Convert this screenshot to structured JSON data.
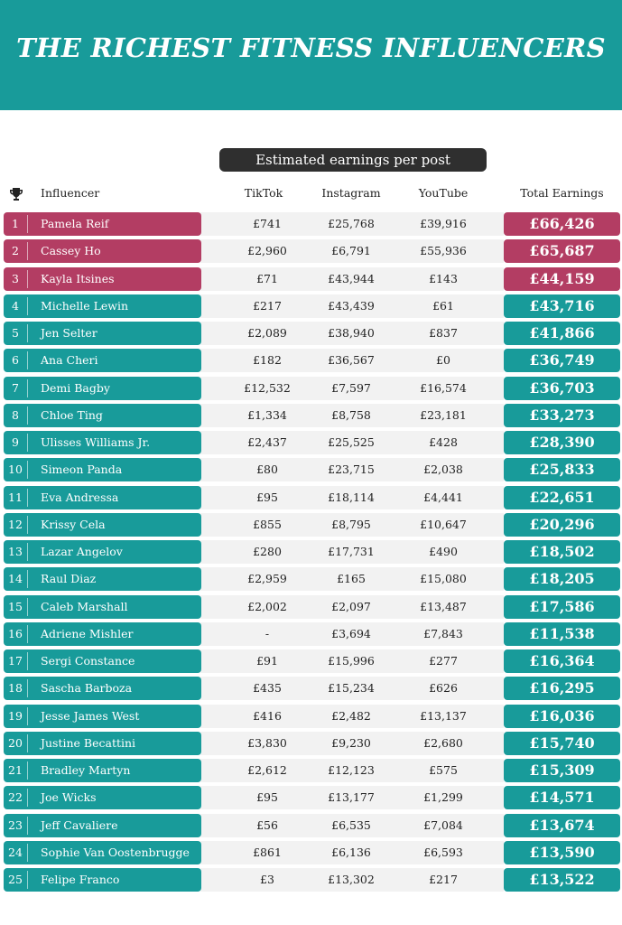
{
  "title": "THE RICHEST FITNESS INFLUENCERS",
  "subheader": "Estimated earnings per post",
  "columns": {
    "influencer": "Influencer",
    "tiktok": "TikTok",
    "instagram": "Instagram",
    "youtube": "YouTube",
    "total": "Total Earnings"
  },
  "colors": {
    "teal": "#189b9a",
    "highlight": "#b33d63",
    "dark_pill": "#2f2f2f"
  },
  "rows": [
    {
      "rank": "1",
      "name": "Pamela Reif",
      "tiktok": "£741",
      "instagram": "£25,768",
      "youtube": "£39,916",
      "total": "£66,426",
      "highlight": true
    },
    {
      "rank": "2",
      "name": "Cassey Ho",
      "tiktok": "£2,960",
      "instagram": "£6,791",
      "youtube": "£55,936",
      "total": "£65,687",
      "highlight": true
    },
    {
      "rank": "3",
      "name": "Kayla Itsines",
      "tiktok": "£71",
      "instagram": "£43,944",
      "youtube": "£143",
      "total": "£44,159",
      "highlight": true
    },
    {
      "rank": "4",
      "name": "Michelle Lewin",
      "tiktok": "£217",
      "instagram": "£43,439",
      "youtube": "£61",
      "total": "£43,716"
    },
    {
      "rank": "5",
      "name": "Jen Selter",
      "tiktok": "£2,089",
      "instagram": "£38,940",
      "youtube": "£837",
      "total": "£41,866"
    },
    {
      "rank": "6",
      "name": "Ana Cheri",
      "tiktok": "£182",
      "instagram": "£36,567",
      "youtube": "£0",
      "total": "£36,749"
    },
    {
      "rank": "7",
      "name": "Demi Bagby",
      "tiktok": "£12,532",
      "instagram": "£7,597",
      "youtube": "£16,574",
      "total": "£36,703"
    },
    {
      "rank": "8",
      "name": "Chloe Ting",
      "tiktok": "£1,334",
      "instagram": "£8,758",
      "youtube": "£23,181",
      "total": "£33,273"
    },
    {
      "rank": "9",
      "name": "Ulisses Williams Jr.",
      "tiktok": "£2,437",
      "instagram": "£25,525",
      "youtube": "£428",
      "total": "£28,390"
    },
    {
      "rank": "10",
      "name": "Simeon Panda",
      "tiktok": "£80",
      "instagram": "£23,715",
      "youtube": "£2,038",
      "total": "£25,833"
    },
    {
      "rank": "11",
      "name": "Eva Andressa",
      "tiktok": "£95",
      "instagram": "£18,114",
      "youtube": "£4,441",
      "total": "£22,651"
    },
    {
      "rank": "12",
      "name": "Krissy Cela",
      "tiktok": "£855",
      "instagram": "£8,795",
      "youtube": "£10,647",
      "total": "£20,296"
    },
    {
      "rank": "13",
      "name": "Lazar Angelov",
      "tiktok": "£280",
      "instagram": "£17,731",
      "youtube": "£490",
      "total": "£18,502"
    },
    {
      "rank": "14",
      "name": "Raul Diaz",
      "tiktok": "£2,959",
      "instagram": "£165",
      "youtube": "£15,080",
      "total": "£18,205"
    },
    {
      "rank": "15",
      "name": "Caleb Marshall",
      "tiktok": "£2,002",
      "instagram": "£2,097",
      "youtube": "£13,487",
      "total": "£17,586"
    },
    {
      "rank": "16",
      "name": "Adriene Mishler",
      "tiktok": "-",
      "instagram": "£3,694",
      "youtube": "£7,843",
      "total": "£11,538"
    },
    {
      "rank": "17",
      "name": "Sergi Constance",
      "tiktok": "£91",
      "instagram": "£15,996",
      "youtube": "£277",
      "total": "£16,364"
    },
    {
      "rank": "18",
      "name": "Sascha Barboza",
      "tiktok": "£435",
      "instagram": "£15,234",
      "youtube": "£626",
      "total": "£16,295"
    },
    {
      "rank": "19",
      "name": "Jesse James West",
      "tiktok": "£416",
      "instagram": "£2,482",
      "youtube": "£13,137",
      "total": "£16,036"
    },
    {
      "rank": "20",
      "name": "Justine Becattini",
      "tiktok": "£3,830",
      "instagram": "£9,230",
      "youtube": "£2,680",
      "total": "£15,740"
    },
    {
      "rank": "21",
      "name": "Bradley Martyn",
      "tiktok": "£2,612",
      "instagram": "£12,123",
      "youtube": "£575",
      "total": "£15,309"
    },
    {
      "rank": "22",
      "name": "Joe Wicks",
      "tiktok": "£95",
      "instagram": "£13,177",
      "youtube": "£1,299",
      "total": "£14,571"
    },
    {
      "rank": "23",
      "name": "Jeff Cavaliere",
      "tiktok": "£56",
      "instagram": "£6,535",
      "youtube": "£7,084",
      "total": "£13,674"
    },
    {
      "rank": "24",
      "name": "Sophie Van Oostenbrugge",
      "tiktok": "£861",
      "instagram": "£6,136",
      "youtube": "£6,593",
      "total": "£13,590"
    },
    {
      "rank": "25",
      "name": "Felipe Franco",
      "tiktok": "£3",
      "instagram": "£13,302",
      "youtube": "£217",
      "total": "£13,522"
    }
  ]
}
